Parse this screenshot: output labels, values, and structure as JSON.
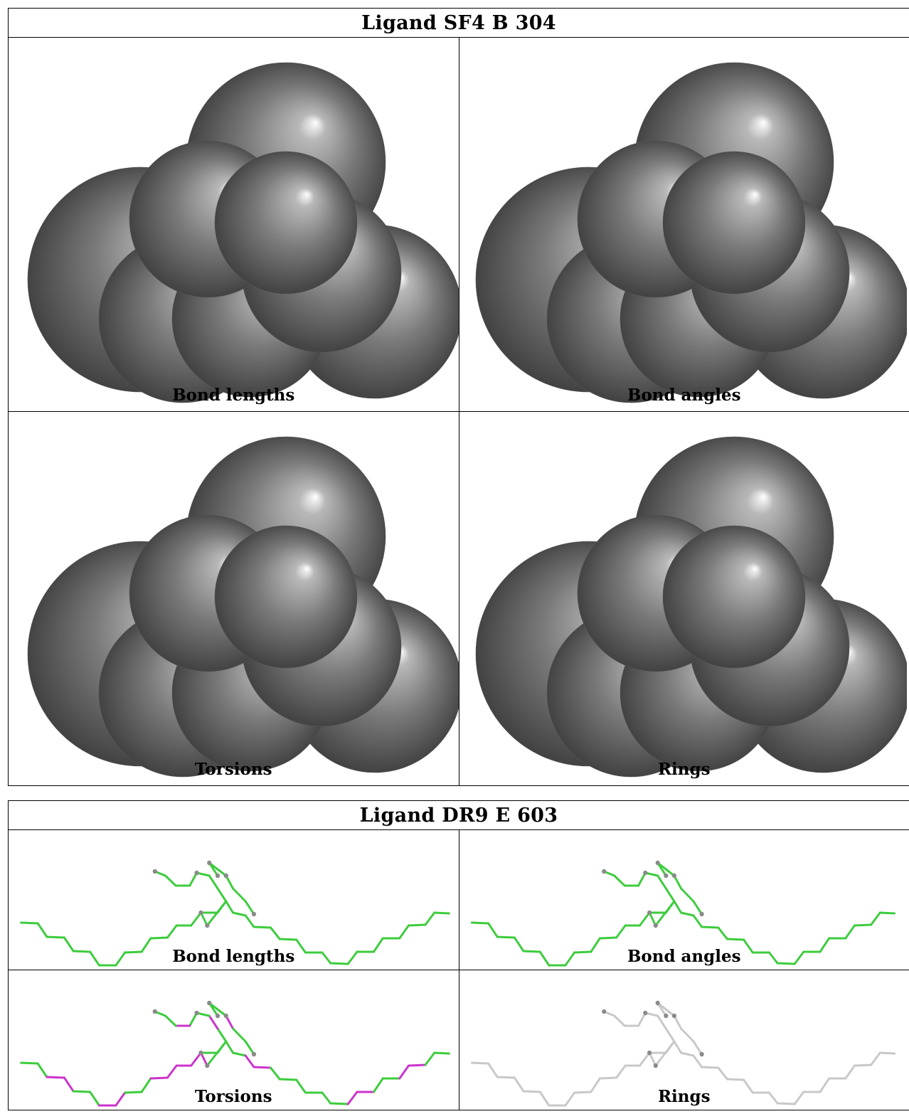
{
  "ligands": [
    {
      "title": "Ligand SF4 B 304",
      "panels": [
        {
          "caption": "Bond lengths"
        },
        {
          "caption": "Bond angles"
        },
        {
          "caption": "Torsions"
        },
        {
          "caption": "Rings"
        }
      ]
    },
    {
      "title": "Ligand DR9 E 603",
      "panels": [
        {
          "caption": "Bond lengths"
        },
        {
          "caption": "Bond angles"
        },
        {
          "caption": "Torsions"
        },
        {
          "caption": "Rings"
        }
      ]
    }
  ],
  "colors": {
    "sphere_gray": "#777777",
    "bond_ok": "#3dcc3d",
    "bond_outlier": "#cc33cc",
    "bond_neutral": "#c8c8c8",
    "atom_gray": "#8a8a8a"
  }
}
